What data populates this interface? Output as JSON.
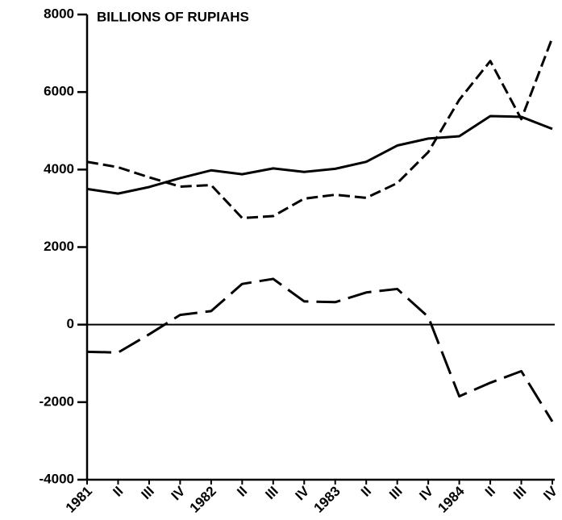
{
  "chart_data": {
    "type": "line",
    "title": "BILLIONS OF RUPIAHS",
    "categories": [
      "1981",
      "II",
      "III",
      "IV",
      "1982",
      "II",
      "III",
      "IV",
      "1983",
      "II",
      "III",
      "IV",
      "1984",
      "II",
      "III",
      "IV"
    ],
    "series": [
      {
        "color": "#000000",
        "dash": "solid",
        "values": [
          3500,
          3380,
          3550,
          3780,
          3980,
          3880,
          4030,
          3940,
          4020,
          4200,
          4620,
          4800,
          4860,
          5380,
          5360,
          5050
        ]
      },
      {
        "color": "#000000",
        "dash": "short",
        "values": [
          4200,
          4060,
          3800,
          3560,
          3600,
          2750,
          2800,
          3250,
          3350,
          3270,
          3650,
          4450,
          5800,
          6800,
          5300,
          7400
        ]
      },
      {
        "color": "#000000",
        "dash": "long",
        "values": [
          -700,
          -720,
          -250,
          250,
          350,
          1050,
          1180,
          600,
          580,
          830,
          920,
          200,
          -1850,
          -1500,
          -1200,
          -2500
        ]
      }
    ],
    "ylim": [
      -4000,
      8000
    ],
    "yticks": [
      -4000,
      -2000,
      0,
      2000,
      4000,
      6000,
      8000
    ],
    "zero_line": true
  }
}
